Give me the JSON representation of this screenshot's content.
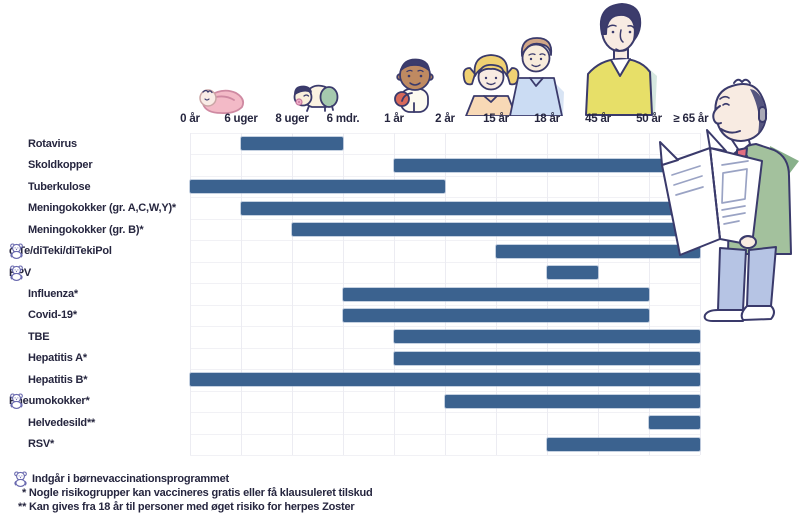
{
  "colors": {
    "bar": "#3b628f",
    "grid": "#ececf2",
    "text": "#26263f",
    "bear_icon": "#6868ae"
  },
  "chart_data": {
    "type": "bar",
    "variant": "horizontal-age-range-timeline",
    "title": "",
    "x_ticks": [
      "0 år",
      "6 uger",
      "8 uger",
      "6 mdr.",
      "1 år",
      "2 år",
      "15 år",
      "18 år",
      "45 år",
      "50 år",
      "≥ 65 år"
    ],
    "grid": true,
    "rows": [
      {
        "label": "Rotavirus",
        "in_child_program": false,
        "from": "6 uger",
        "to": "6 mdr.",
        "from_idx": 1,
        "to_idx": 3
      },
      {
        "label": "Skoldkopper",
        "in_child_program": false,
        "from": "1 år",
        "to": "≥ 65 år",
        "from_idx": 4,
        "to_idx": 10
      },
      {
        "label": "Tuberkulose",
        "in_child_program": false,
        "from": "0 år",
        "to": "2 år",
        "from_idx": 0,
        "to_idx": 5
      },
      {
        "label": "Meningokokker (gr. A,C,W,Y)*",
        "in_child_program": false,
        "from": "6 uger",
        "to": "≥ 65 år",
        "from_idx": 1,
        "to_idx": 10
      },
      {
        "label": "Meningokokker (gr. B)*",
        "in_child_program": false,
        "from": "8 uger",
        "to": "≥ 65 år",
        "from_idx": 2,
        "to_idx": 10
      },
      {
        "label": "diTe/diTeki/diTekiPol",
        "in_child_program": true,
        "from": "15 år",
        "to": "≥ 65 år",
        "from_idx": 6,
        "to_idx": 10
      },
      {
        "label": "HPV",
        "in_child_program": true,
        "from": "18 år",
        "to": "45 år",
        "from_idx": 7,
        "to_idx": 8
      },
      {
        "label": "Influenza*",
        "in_child_program": false,
        "from": "6 mdr.",
        "to": "50 år",
        "from_idx": 3,
        "to_idx": 9
      },
      {
        "label": "Covid-19*",
        "in_child_program": false,
        "from": "6 mdr.",
        "to": "50 år",
        "from_idx": 3,
        "to_idx": 9
      },
      {
        "label": "TBE",
        "in_child_program": false,
        "from": "1 år",
        "to": "≥ 65 år",
        "from_idx": 4,
        "to_idx": 10
      },
      {
        "label": "Hepatitis A*",
        "in_child_program": false,
        "from": "1 år",
        "to": "≥ 65 år",
        "from_idx": 4,
        "to_idx": 10
      },
      {
        "label": "Hepatitis B*",
        "in_child_program": false,
        "from": "0 år",
        "to": "≥ 65 år",
        "from_idx": 0,
        "to_idx": 10
      },
      {
        "label": "Pneumokokker*",
        "in_child_program": true,
        "from": "2 år",
        "to": "≥ 65 år",
        "from_idx": 5,
        "to_idx": 10
      },
      {
        "label": "Helvedesild**",
        "in_child_program": false,
        "from": "50 år",
        "to": "≥ 65 år",
        "from_idx": 9,
        "to_idx": 10
      },
      {
        "label": "RSV*",
        "in_child_program": false,
        "from": "18 år",
        "to": "≥ 65 år",
        "from_idx": 7,
        "to_idx": 10
      }
    ]
  },
  "footnotes": {
    "program_note": "Indgår i børnevaccinationsprogrammet",
    "risk_note": "* Nogle risikogrupper kan vaccineres gratis eller få klausuleret tilskud",
    "zoster_note": "** Kan gives fra 18 år til personer med øget risiko for herpes Zoster"
  },
  "figures": {
    "newborn": "0 år",
    "crawling_baby": "6-8 uger / 6 mdr.",
    "toddler": "1-2 år",
    "girl": "15 år",
    "boy": "18 år",
    "adult_man": "45-50 år",
    "senior_reading_newspaper": "≥ 65 år"
  }
}
